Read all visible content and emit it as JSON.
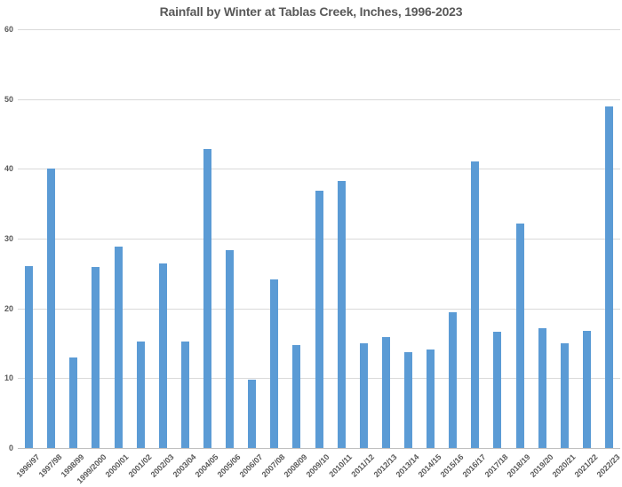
{
  "chart_data": {
    "type": "bar",
    "title": "Rainfall by Winter at Tablas Creek, Inches, 1996-2023",
    "categories": [
      "1996/97",
      "1997/98",
      "1998/99",
      "1999/2000",
      "2000/01",
      "2001/02",
      "2002/03",
      "2003/04",
      "2004/05",
      "2005/06",
      "2006/07",
      "2007/08",
      "2008/09",
      "2009/10",
      "2010/11",
      "2011/12",
      "2012/13",
      "2013/14",
      "2014/15",
      "2015/16",
      "2016/17",
      "2017/18",
      "2018/19",
      "2019/20",
      "2020/21",
      "2021/22",
      "2022/23"
    ],
    "values": [
      26.1,
      40.0,
      13.0,
      25.9,
      28.9,
      15.3,
      26.5,
      15.2,
      42.8,
      28.3,
      9.8,
      24.1,
      14.8,
      36.9,
      38.2,
      15.0,
      15.9,
      13.7,
      14.1,
      19.5,
      41.0,
      16.7,
      32.2,
      17.2,
      15.0,
      16.8,
      49.0
    ],
    "xlabel": "",
    "ylabel": "",
    "ylim": [
      0,
      60
    ],
    "yticks": [
      0,
      10,
      20,
      30,
      40,
      50,
      60
    ],
    "grid": true,
    "legend_position": "none",
    "colors": {
      "bar": "#5B9BD5",
      "gridline": "#D9D9D9",
      "axis_line": "#BFBFBF",
      "label": "#595959",
      "title": "#595959"
    }
  }
}
